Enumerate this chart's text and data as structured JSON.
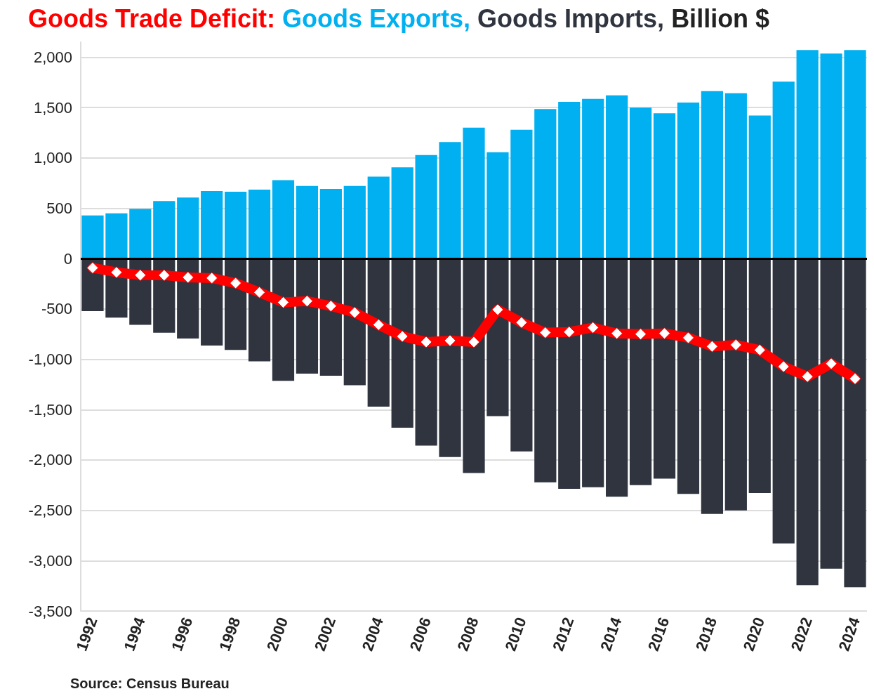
{
  "chart_data": {
    "type": "bar",
    "title": "Billion $",
    "stacked": true,
    "legend": false,
    "grid": "y",
    "marker": "diamond",
    "categories": [
      "1992",
      null,
      "1994",
      null,
      "1996",
      null,
      "1998",
      null,
      "2000",
      null,
      "2002",
      null,
      "2004",
      null,
      "2006",
      null,
      "2008",
      null,
      "2010",
      null,
      "2012",
      null,
      "2014",
      null,
      "2016",
      null,
      "2018",
      null,
      "2020",
      null,
      "2022",
      null,
      "2024"
    ],
    "ylim": [
      -3500,
      2150
    ],
    "yticks": [
      {
        "value": -3500,
        "label": "-3,500"
      },
      {
        "value": -3000,
        "label": "-3,000"
      },
      {
        "value": -2500,
        "label": "-2,500"
      },
      {
        "value": -2000,
        "label": "-2,000"
      },
      {
        "value": -1500,
        "label": "-1,500"
      },
      {
        "value": -1000,
        "label": "-1,000"
      },
      -500,
      0,
      500,
      {
        "value": 1000,
        "label": "1,000"
      },
      {
        "value": 1500,
        "label": "1,500"
      },
      {
        "value": 2000,
        "label": "2,000"
      }
    ],
    "series": [
      {
        "name": "Goods Exports,",
        "color": "#00b0f0",
        "values": [
          429,
          450,
          493,
          571,
          607,
          671,
          664,
          686,
          779,
          721,
          693,
          721,
          814,
          907,
          1029,
          1157,
          1300,
          1057,
          1279,
          1486,
          1557,
          1586,
          1621,
          1500,
          1443,
          1550,
          1664,
          1643,
          1421,
          1757,
          2071,
          2036,
          2071
        ]
      },
      {
        "name": "Goods Imports,",
        "color": "#2f343f",
        "values": [
          -521,
          -586,
          -657,
          -736,
          -793,
          -864,
          -907,
          -1021,
          -1214,
          -1143,
          -1164,
          -1257,
          -1471,
          -1679,
          -1857,
          -1971,
          -2129,
          -1564,
          -1914,
          -2221,
          -2286,
          -2271,
          -2364,
          -2250,
          -2186,
          -2336,
          -2536,
          -2500,
          -2329,
          -2829,
          -3243,
          -3079,
          -3264
        ]
      },
      {
        "name": "Goods Trade Deficit:",
        "type": "line",
        "color": "#ff0000",
        "values": [
          -92,
          -136,
          -164,
          -165,
          -186,
          -193,
          -243,
          -335,
          -435,
          -422,
          -471,
          -536,
          -657,
          -772,
          -828,
          -814,
          -829,
          -507,
          -635,
          -735,
          -729,
          -685,
          -743,
          -750,
          -743,
          -786,
          -872,
          -857,
          -908,
          -1072,
          -1172,
          -1043,
          -1193
        ]
      }
    ],
    "ref_lines": [
      {
        "axis": "y",
        "value": 0,
        "color": "#000000"
      }
    ],
    "annotations": [
      "Source: Census Bureau"
    ]
  }
}
